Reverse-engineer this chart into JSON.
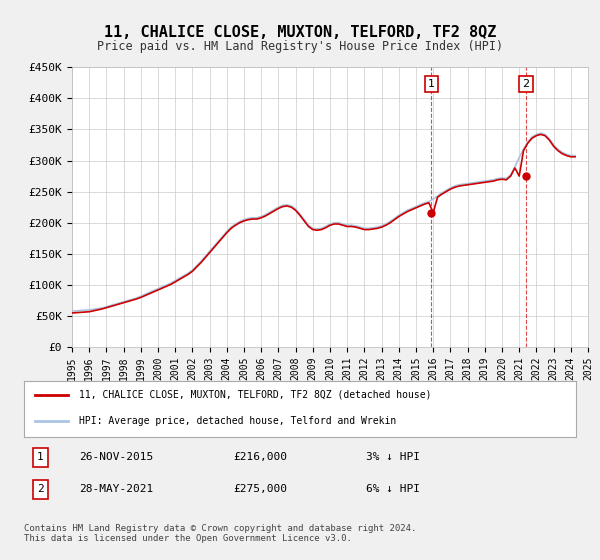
{
  "title": "11, CHALICE CLOSE, MUXTON, TELFORD, TF2 8QZ",
  "subtitle": "Price paid vs. HM Land Registry's House Price Index (HPI)",
  "ylabel": "",
  "ylim": [
    0,
    450000
  ],
  "yticks": [
    0,
    50000,
    100000,
    150000,
    200000,
    250000,
    300000,
    350000,
    400000,
    450000
  ],
  "ytick_labels": [
    "£0",
    "£50K",
    "£100K",
    "£150K",
    "£200K",
    "£250K",
    "£300K",
    "£350K",
    "£400K",
    "£450K"
  ],
  "bg_color": "#f0f0f0",
  "plot_bg_color": "#ffffff",
  "hpi_color": "#aac4e0",
  "price_color": "#cc0000",
  "marker1_date_idx": 20.9,
  "marker2_date_idx": 26.4,
  "sale1_label": "1",
  "sale2_label": "2",
  "sale1_date": "26-NOV-2015",
  "sale1_price": "£216,000",
  "sale1_hpi": "3% ↓ HPI",
  "sale2_date": "28-MAY-2021",
  "sale2_price": "£275,000",
  "sale2_hpi": "6% ↓ HPI",
  "legend_line1": "11, CHALICE CLOSE, MUXTON, TELFORD, TF2 8QZ (detached house)",
  "legend_line2": "HPI: Average price, detached house, Telford and Wrekin",
  "footer": "Contains HM Land Registry data © Crown copyright and database right 2024.\nThis data is licensed under the Open Government Licence v3.0.",
  "hpi_data": {
    "dates": [
      1995.0,
      1995.25,
      1995.5,
      1995.75,
      1996.0,
      1996.25,
      1996.5,
      1996.75,
      1997.0,
      1997.25,
      1997.5,
      1997.75,
      1998.0,
      1998.25,
      1998.5,
      1998.75,
      1999.0,
      1999.25,
      1999.5,
      1999.75,
      2000.0,
      2000.25,
      2000.5,
      2000.75,
      2001.0,
      2001.25,
      2001.5,
      2001.75,
      2002.0,
      2002.25,
      2002.5,
      2002.75,
      2003.0,
      2003.25,
      2003.5,
      2003.75,
      2004.0,
      2004.25,
      2004.5,
      2004.75,
      2005.0,
      2005.25,
      2005.5,
      2005.75,
      2006.0,
      2006.25,
      2006.5,
      2006.75,
      2007.0,
      2007.25,
      2007.5,
      2007.75,
      2008.0,
      2008.25,
      2008.5,
      2008.75,
      2009.0,
      2009.25,
      2009.5,
      2009.75,
      2010.0,
      2010.25,
      2010.5,
      2010.75,
      2011.0,
      2011.25,
      2011.5,
      2011.75,
      2012.0,
      2012.25,
      2012.5,
      2012.75,
      2013.0,
      2013.25,
      2013.5,
      2013.75,
      2014.0,
      2014.25,
      2014.5,
      2014.75,
      2015.0,
      2015.25,
      2015.5,
      2015.75,
      2016.0,
      2016.25,
      2016.5,
      2016.75,
      2017.0,
      2017.25,
      2017.5,
      2017.75,
      2018.0,
      2018.25,
      2018.5,
      2018.75,
      2019.0,
      2019.25,
      2019.5,
      2019.75,
      2020.0,
      2020.25,
      2020.5,
      2020.75,
      2021.0,
      2021.25,
      2021.5,
      2021.75,
      2022.0,
      2022.25,
      2022.5,
      2022.75,
      2023.0,
      2023.25,
      2023.5,
      2023.75,
      2024.0,
      2024.25
    ],
    "values": [
      58000,
      58500,
      59000,
      59500,
      60000,
      61000,
      62000,
      63000,
      65000,
      67000,
      69000,
      71000,
      73000,
      75000,
      77000,
      79000,
      82000,
      85000,
      88000,
      91000,
      94000,
      97000,
      100000,
      103000,
      107000,
      111000,
      115000,
      119000,
      124000,
      131000,
      138000,
      146000,
      154000,
      162000,
      170000,
      178000,
      186000,
      193000,
      198000,
      202000,
      205000,
      207000,
      208000,
      208000,
      210000,
      213000,
      217000,
      221000,
      225000,
      228000,
      229000,
      227000,
      222000,
      214000,
      205000,
      196000,
      191000,
      190000,
      191000,
      194000,
      198000,
      200000,
      200000,
      198000,
      196000,
      196000,
      195000,
      193000,
      191000,
      191000,
      192000,
      193000,
      195000,
      198000,
      202000,
      207000,
      212000,
      216000,
      220000,
      223000,
      226000,
      229000,
      232000,
      234000,
      238000,
      243000,
      248000,
      252000,
      256000,
      259000,
      261000,
      262000,
      263000,
      264000,
      265000,
      266000,
      267000,
      268000,
      269000,
      271000,
      272000,
      271000,
      277000,
      290000,
      305000,
      318000,
      330000,
      338000,
      342000,
      344000,
      342000,
      335000,
      325000,
      318000,
      313000,
      310000,
      308000,
      308000
    ]
  },
  "price_data": {
    "dates": [
      1995.0,
      1995.25,
      1995.5,
      1995.75,
      1996.0,
      1996.25,
      1996.5,
      1996.75,
      1997.0,
      1997.25,
      1997.5,
      1997.75,
      1998.0,
      1998.25,
      1998.5,
      1998.75,
      1999.0,
      1999.25,
      1999.5,
      1999.75,
      2000.0,
      2000.25,
      2000.5,
      2000.75,
      2001.0,
      2001.25,
      2001.5,
      2001.75,
      2002.0,
      2002.25,
      2002.5,
      2002.75,
      2003.0,
      2003.25,
      2003.5,
      2003.75,
      2004.0,
      2004.25,
      2004.5,
      2004.75,
      2005.0,
      2005.25,
      2005.5,
      2005.75,
      2006.0,
      2006.25,
      2006.5,
      2006.75,
      2007.0,
      2007.25,
      2007.5,
      2007.75,
      2008.0,
      2008.25,
      2008.5,
      2008.75,
      2009.0,
      2009.25,
      2009.5,
      2009.75,
      2010.0,
      2010.25,
      2010.5,
      2010.75,
      2011.0,
      2011.25,
      2011.5,
      2011.75,
      2012.0,
      2012.25,
      2012.5,
      2012.75,
      2013.0,
      2013.25,
      2013.5,
      2013.75,
      2014.0,
      2014.25,
      2014.5,
      2014.75,
      2015.0,
      2015.25,
      2015.5,
      2015.75,
      2016.0,
      2016.25,
      2016.5,
      2016.75,
      2017.0,
      2017.25,
      2017.5,
      2017.75,
      2018.0,
      2018.25,
      2018.5,
      2018.75,
      2019.0,
      2019.25,
      2019.5,
      2019.75,
      2020.0,
      2020.25,
      2020.5,
      2020.75,
      2021.0,
      2021.25,
      2021.5,
      2021.75,
      2022.0,
      2022.25,
      2022.5,
      2022.75,
      2023.0,
      2023.25,
      2023.5,
      2023.75,
      2024.0,
      2024.25
    ],
    "values": [
      55000,
      55500,
      56000,
      56500,
      57000,
      58500,
      60000,
      61500,
      63500,
      65500,
      67500,
      69500,
      71500,
      73500,
      75500,
      77500,
      80000,
      83000,
      86000,
      89000,
      92000,
      95000,
      98000,
      101000,
      105000,
      109000,
      113000,
      117000,
      122000,
      129000,
      136000,
      144000,
      152000,
      160000,
      168000,
      176000,
      184000,
      191000,
      196000,
      200000,
      203000,
      205000,
      206000,
      206000,
      208000,
      211000,
      215000,
      219000,
      223000,
      226000,
      227000,
      225000,
      220000,
      212000,
      203000,
      194000,
      189000,
      188000,
      189000,
      192000,
      196000,
      198000,
      198000,
      196000,
      194000,
      194000,
      193000,
      191000,
      189000,
      189000,
      190000,
      191000,
      193000,
      196000,
      200000,
      205000,
      210000,
      214000,
      218000,
      221000,
      224000,
      227000,
      230000,
      232000,
      216000,
      241000,
      246000,
      250000,
      254000,
      257000,
      259000,
      260000,
      261000,
      262000,
      263000,
      264000,
      265000,
      266000,
      267000,
      269000,
      270000,
      269000,
      275000,
      288000,
      275000,
      316000,
      328000,
      336000,
      340000,
      342000,
      340000,
      333000,
      323000,
      316000,
      311000,
      308000,
      306000,
      306000
    ]
  },
  "sale_points": [
    {
      "date": 2015.9,
      "price": 216000,
      "label": "1"
    },
    {
      "date": 2021.4,
      "price": 275000,
      "label": "2"
    }
  ],
  "vline1_x": 2015.9,
  "vline2_x": 2021.4,
  "xmin": 1995.0,
  "xmax": 2025.0
}
